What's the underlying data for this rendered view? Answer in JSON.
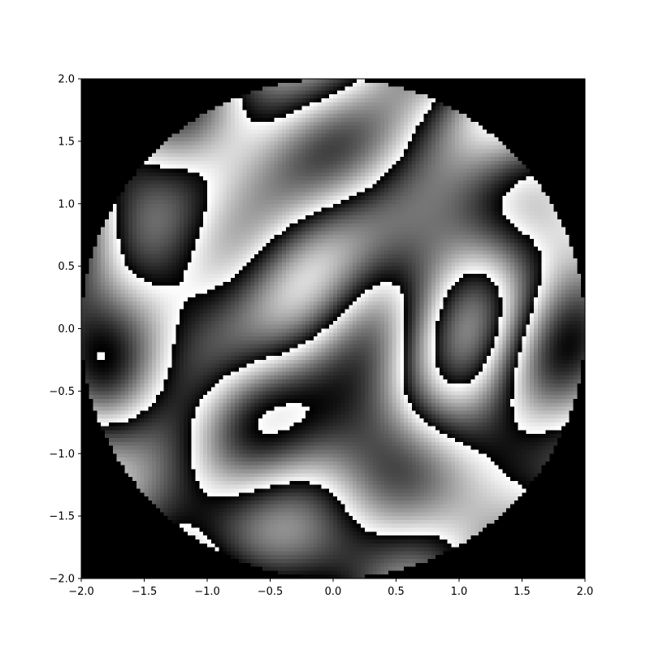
{
  "chart_data": {
    "type": "heatmap",
    "title": "",
    "xlabel": "",
    "ylabel": "",
    "xlim": [
      -2.0,
      2.0
    ],
    "ylim": [
      -2.0,
      2.0
    ],
    "aperture": "circle",
    "aperture_radius": 2.0,
    "colormap": "gray",
    "value_range": [
      0,
      1
    ],
    "description_values": "wrapped phase field of a smooth random surface, shown in grayscale inside a circular aperture",
    "outside_color": "#000000",
    "xticks": [
      {
        "value": -2.0,
        "label": "−2.0"
      },
      {
        "value": -1.5,
        "label": "−1.5"
      },
      {
        "value": -1.0,
        "label": "−1.0"
      },
      {
        "value": -0.5,
        "label": "−0.5"
      },
      {
        "value": 0.0,
        "label": "0.0"
      },
      {
        "value": 0.5,
        "label": "0.5"
      },
      {
        "value": 1.0,
        "label": "1.0"
      },
      {
        "value": 1.5,
        "label": "1.5"
      },
      {
        "value": 2.0,
        "label": "2.0"
      }
    ],
    "yticks": [
      {
        "value": 2.0,
        "label": "2.0"
      },
      {
        "value": 1.5,
        "label": "1.5"
      },
      {
        "value": 1.0,
        "label": "1.0"
      },
      {
        "value": 0.5,
        "label": "0.5"
      },
      {
        "value": 0.0,
        "label": "0.0"
      },
      {
        "value": -0.5,
        "label": "−0.5"
      },
      {
        "value": -1.0,
        "label": "−1.0"
      },
      {
        "value": -1.5,
        "label": "−1.5"
      },
      {
        "value": -2.0,
        "label": "−2.0"
      }
    ],
    "grid": false
  }
}
